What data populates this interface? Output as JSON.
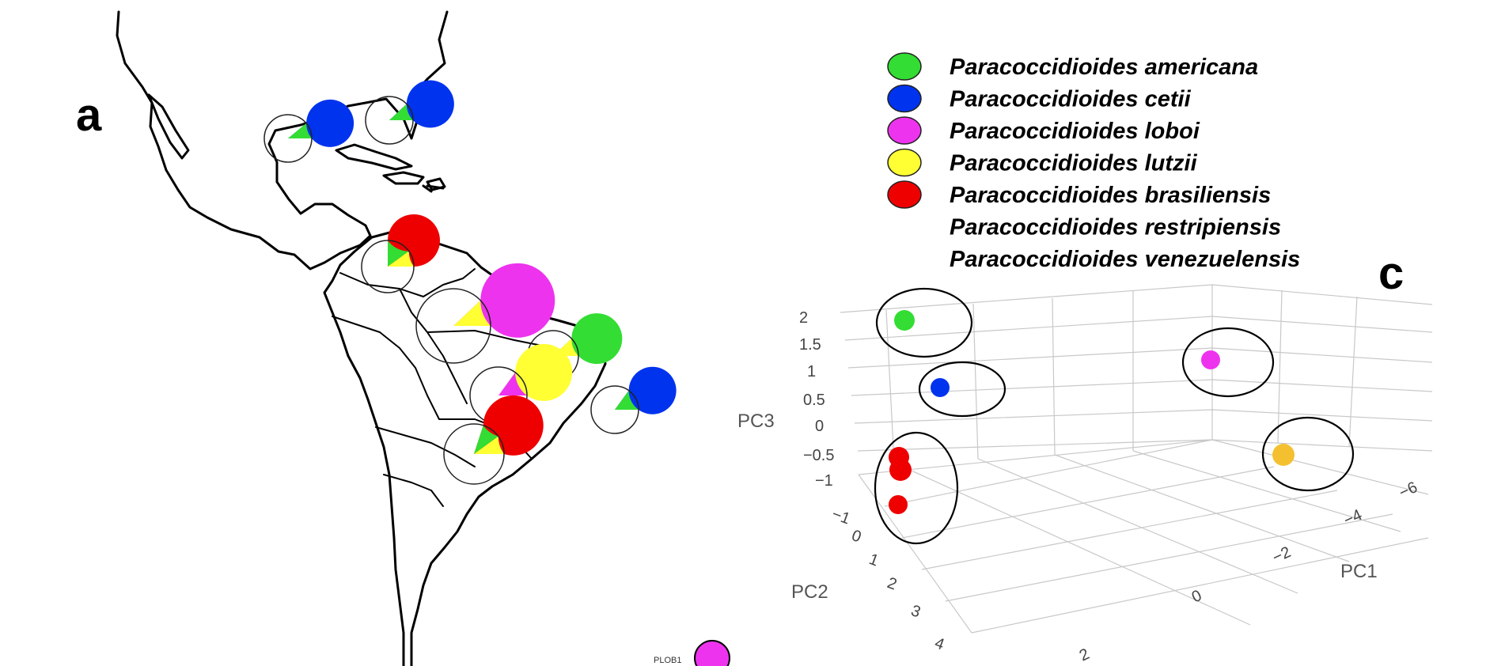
{
  "panels": {
    "a": "a",
    "c": "c"
  },
  "colors": {
    "americana": "#33dd33",
    "cetii": "#0033ee",
    "loboi": "#ee33ee",
    "lutzii": "#ffff33",
    "brasiliensis": "#ee0000",
    "pca_lutzii_point": "#f5c030"
  },
  "legend": [
    {
      "label": "Paracoccidioides americana",
      "swatch": "#33dd33"
    },
    {
      "label": "Paracoccidioides cetii",
      "swatch": "#0033ee"
    },
    {
      "label": "Paracoccidioides loboi",
      "swatch": "#ee33ee"
    },
    {
      "label": "Paracoccidioides lutzii",
      "swatch": "#ffff33"
    },
    {
      "label": "Paracoccidioides brasiliensis",
      "swatch": "#ee0000"
    },
    {
      "label": "Paracoccidioides restripiensis",
      "swatch": null
    },
    {
      "label": "Paracoccidioides venezuelensis",
      "swatch": null
    }
  ],
  "map": {
    "pies": [
      {
        "region": "gulf-of-mexico",
        "slices": [
          {
            "species": "cetii",
            "fraction": 0.89
          },
          {
            "species": "americana",
            "fraction": 0.11
          }
        ]
      },
      {
        "region": "florida",
        "slices": [
          {
            "species": "cetii",
            "fraction": 0.88
          },
          {
            "species": "americana",
            "fraction": 0.12
          }
        ]
      },
      {
        "region": "venezuela",
        "slices": [
          {
            "species": "brasiliensis",
            "fraction": 0.75
          },
          {
            "species": "americana",
            "fraction": 0.15
          },
          {
            "species": "lutzii",
            "fraction": 0.1
          }
        ]
      },
      {
        "region": "amazon",
        "slices": [
          {
            "species": "loboi",
            "fraction": 0.88
          },
          {
            "species": "lutzii",
            "fraction": 0.12
          }
        ]
      },
      {
        "region": "northeast-brazil",
        "slices": [
          {
            "species": "americana",
            "fraction": 0.88
          },
          {
            "species": "lutzii",
            "fraction": 0.12
          }
        ]
      },
      {
        "region": "central-brazil",
        "slices": [
          {
            "species": "lutzii",
            "fraction": 0.85
          },
          {
            "species": "loboi",
            "fraction": 0.15
          }
        ]
      },
      {
        "region": "atlantic-offshore",
        "slices": [
          {
            "species": "cetii",
            "fraction": 0.85
          },
          {
            "species": "americana",
            "fraction": 0.15
          }
        ]
      },
      {
        "region": "south-brazil",
        "slices": [
          {
            "species": "brasiliensis",
            "fraction": 0.8
          },
          {
            "species": "americana",
            "fraction": 0.1
          },
          {
            "species": "lutzii",
            "fraction": 0.1
          }
        ]
      }
    ],
    "sample_label": "PLOB1"
  },
  "chart_data": {
    "type": "scatter",
    "dimensions": 3,
    "axes": {
      "x": {
        "title": "PC1",
        "ticks": [
          "0",
          "−2",
          "−4",
          "−6"
        ]
      },
      "y": {
        "title": "PC2",
        "ticks": [
          "−1",
          "0",
          "1",
          "2",
          "3",
          "4"
        ]
      },
      "z": {
        "title": "PC3",
        "ticks": [
          "2",
          "1.5",
          "1",
          "0.5",
          "0",
          "−0.5",
          "−1"
        ]
      },
      "extra_tick": "2"
    },
    "grid": true,
    "clusters": [
      {
        "species": "americana",
        "color": "#33dd33",
        "points": [
          {
            "pc3": 2
          }
        ]
      },
      {
        "species": "cetii",
        "color": "#0033ee",
        "points": [
          {
            "pc3": 1
          }
        ]
      },
      {
        "species": "brasiliensis",
        "color": "#ee0000",
        "points": [
          {
            "pc3": -0.5
          },
          {
            "pc3": -0.7
          },
          {
            "pc3": -1
          }
        ]
      },
      {
        "species": "loboi",
        "color": "#ee33ee",
        "points": [
          {
            "pc1": -2,
            "pc3": 1.5
          }
        ]
      },
      {
        "species": "lutzii",
        "color": "#f5c030",
        "points": [
          {
            "pc1": -4,
            "pc3": 0
          }
        ]
      }
    ]
  }
}
